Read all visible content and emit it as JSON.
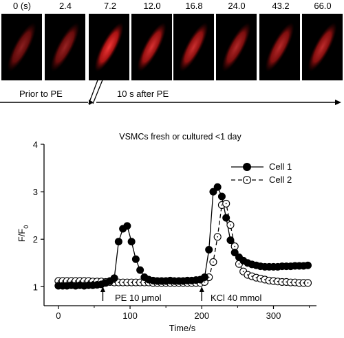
{
  "time_labels": [
    "0 (s)",
    "2.4",
    "7.2",
    "12.0",
    "16.8",
    "24.0",
    "43.2",
    "66.0"
  ],
  "phase_labels": {
    "before": "Prior to PE",
    "after": "10 s after PE"
  },
  "frame_brightness": [
    0.55,
    0.6,
    0.95,
    0.85,
    0.8,
    0.7,
    0.72,
    0.75
  ],
  "colors": {
    "background": "#ffffff",
    "frame_bg": "#000000",
    "cell": "#ff2a2a",
    "ink": "#000000"
  },
  "chart_data": {
    "type": "line",
    "title": "VSMCs fresh or cultured <1 day",
    "xlabel": "Time/s",
    "ylabel": "F/F0",
    "xlim": [
      -20,
      360
    ],
    "ylim": [
      0.6,
      4
    ],
    "xticks": [
      0,
      100,
      200,
      300
    ],
    "yticks": [
      1,
      2,
      3,
      4
    ],
    "legend_position": "top-right",
    "annotations": [
      {
        "x": 62,
        "text": "PE 10 μmol"
      },
      {
        "x": 200,
        "text": "KCl 40 mmol"
      }
    ],
    "series": [
      {
        "name": "Cell 1",
        "marker": "filled",
        "line": "solid",
        "x": [
          0,
          6,
          12,
          18,
          24,
          30,
          36,
          42,
          48,
          54,
          60,
          66,
          72,
          78,
          84,
          90,
          96,
          102,
          108,
          114,
          120,
          126,
          132,
          138,
          144,
          150,
          156,
          162,
          168,
          174,
          180,
          186,
          192,
          198,
          204,
          210,
          216,
          222,
          228,
          234,
          240,
          246,
          252,
          258,
          264,
          270,
          276,
          282,
          288,
          294,
          300,
          306,
          312,
          318,
          324,
          330,
          336,
          342,
          348
        ],
        "values": [
          1.02,
          1.02,
          1.02,
          1.03,
          1.02,
          1.03,
          1.02,
          1.03,
          1.03,
          1.04,
          1.05,
          1.08,
          1.12,
          1.18,
          1.95,
          2.22,
          2.28,
          1.95,
          1.58,
          1.35,
          1.2,
          1.15,
          1.13,
          1.12,
          1.12,
          1.12,
          1.13,
          1.12,
          1.12,
          1.12,
          1.13,
          1.13,
          1.14,
          1.15,
          1.2,
          1.78,
          3.0,
          3.1,
          2.9,
          2.45,
          1.98,
          1.72,
          1.62,
          1.55,
          1.5,
          1.47,
          1.45,
          1.43,
          1.42,
          1.42,
          1.42,
          1.42,
          1.43,
          1.43,
          1.43,
          1.44,
          1.44,
          1.44,
          1.45
        ]
      },
      {
        "name": "Cell 2",
        "marker": "open",
        "line": "dashed",
        "x": [
          0,
          6,
          12,
          18,
          24,
          30,
          36,
          42,
          48,
          54,
          60,
          66,
          72,
          78,
          84,
          90,
          96,
          102,
          108,
          114,
          120,
          126,
          132,
          138,
          144,
          150,
          156,
          162,
          168,
          174,
          180,
          186,
          192,
          198,
          204,
          210,
          216,
          222,
          228,
          234,
          240,
          246,
          252,
          258,
          264,
          270,
          276,
          282,
          288,
          294,
          300,
          306,
          312,
          318,
          324,
          330,
          336,
          342,
          348
        ],
        "values": [
          1.12,
          1.12,
          1.12,
          1.12,
          1.12,
          1.12,
          1.12,
          1.12,
          1.11,
          1.11,
          1.11,
          1.1,
          1.1,
          1.09,
          1.09,
          1.09,
          1.09,
          1.09,
          1.09,
          1.09,
          1.09,
          1.09,
          1.08,
          1.08,
          1.08,
          1.08,
          1.08,
          1.08,
          1.08,
          1.08,
          1.08,
          1.08,
          1.08,
          1.08,
          1.1,
          1.2,
          1.52,
          2.05,
          2.72,
          2.75,
          2.3,
          1.85,
          1.48,
          1.32,
          1.25,
          1.22,
          1.19,
          1.17,
          1.15,
          1.13,
          1.12,
          1.11,
          1.1,
          1.1,
          1.09,
          1.09,
          1.08,
          1.08,
          1.08
        ]
      }
    ]
  }
}
